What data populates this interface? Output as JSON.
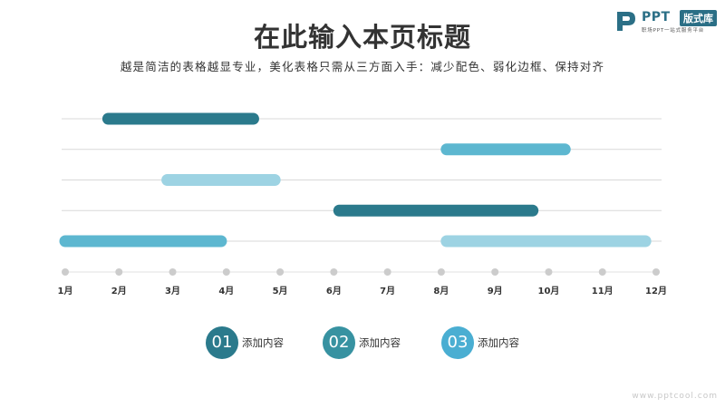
{
  "header": {
    "title": "在此输入本页标题",
    "subtitle": "越是简洁的表格越显专业，美化表格只需从三方面入手：减少配色、弱化边框、保持对齐"
  },
  "logo": {
    "mark_icon": "ppt-p-logo-icon",
    "name": "PPT",
    "badge": "版式库",
    "tagline": "职场PPT一站式服务平台",
    "color": "#2b6f86"
  },
  "chart_data": {
    "type": "gantt",
    "title": "",
    "xlabel": "",
    "ylabel": "",
    "categories": [
      "1月",
      "2月",
      "3月",
      "4月",
      "5月",
      "6月",
      "7月",
      "8月",
      "9月",
      "10月",
      "11月",
      "12月"
    ],
    "rows": 5,
    "grid": true,
    "tasks": [
      {
        "row": 1,
        "start": 1.8,
        "end": 4.5,
        "group": "01",
        "color": "#2b7a8c"
      },
      {
        "row": 2,
        "start": 8.1,
        "end": 10.3,
        "group": "03",
        "color": "#5db7d0"
      },
      {
        "row": 3,
        "start": 2.9,
        "end": 4.9,
        "group": "02",
        "color": "#9dd3e3"
      },
      {
        "row": 4,
        "start": 6.1,
        "end": 9.7,
        "group": "01",
        "color": "#2b7a8c"
      },
      {
        "row": 5,
        "start": 1.0,
        "end": 3.9,
        "group": "03",
        "color": "#5db7d0"
      },
      {
        "row": 5,
        "start": 8.1,
        "end": 11.8,
        "group": "02",
        "color": "#9dd3e3"
      }
    ],
    "legend_placement": "bottom"
  },
  "legend": [
    {
      "number": "01",
      "label": "添加内容",
      "color": "#2b7a8c"
    },
    {
      "number": "02",
      "label": "添加内容",
      "color": "#3792a1"
    },
    {
      "number": "03",
      "label": "添加内容",
      "color": "#4aaed2"
    }
  ],
  "footer": {
    "watermark": "www.pptcool.com"
  },
  "colors": {
    "grid": "#d9d9d9",
    "axis_dot": "#cccccc",
    "axis_line": "#e2e2e2",
    "text": "#333333"
  }
}
